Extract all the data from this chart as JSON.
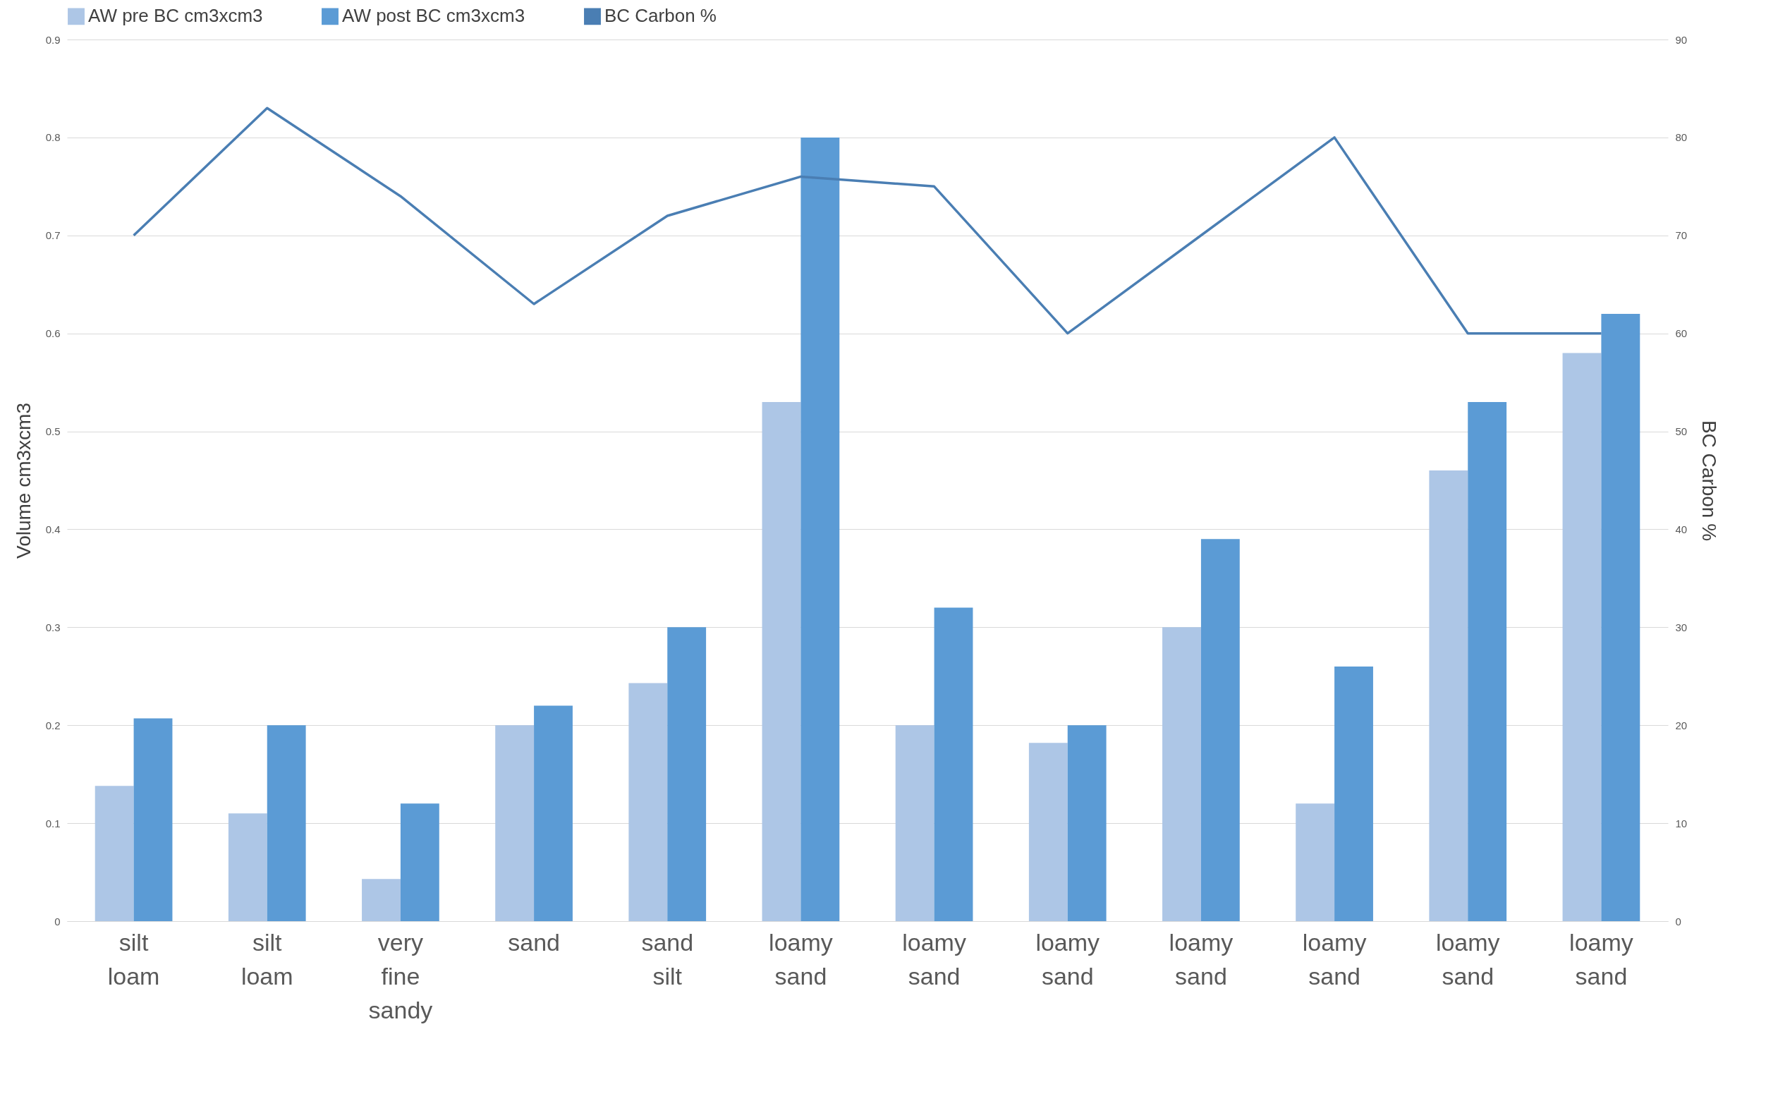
{
  "chart_data": {
    "type": "bar",
    "ylabel": "Volume cm3xcm3",
    "y2label": "BC Carbon %",
    "categories": [
      "silt loam",
      "silt loam",
      "very fine sandy",
      "sand",
      "sand silt",
      "loamy sand",
      "loamy sand",
      "loamy sand",
      "loamy sand",
      "loamy sand",
      "loamy sand",
      "loamy sand"
    ],
    "series": [
      {
        "name": "AW pre BC cm3xcm3",
        "color": "#adc6e6",
        "values": [
          0.138,
          0.11,
          0.043,
          0.2,
          0.243,
          0.53,
          0.2,
          0.182,
          0.3,
          0.12,
          0.46,
          0.58
        ]
      },
      {
        "name": "AW post BC cm3xcm3",
        "color": "#5b9bd5",
        "values": [
          0.207,
          0.2,
          0.12,
          0.22,
          0.3,
          0.8,
          0.32,
          0.2,
          0.39,
          0.26,
          0.53,
          0.62
        ]
      },
      {
        "name": "BC Carbon %",
        "type": "line",
        "axis": "y2",
        "color": "#4a7eb3",
        "values": [
          70,
          83,
          74,
          63,
          72,
          76,
          75,
          60,
          70,
          80,
          60,
          60
        ]
      }
    ],
    "ylim": [
      0,
      0.9
    ],
    "yticks": [
      0,
      0.1,
      0.2,
      0.3,
      0.4,
      0.5,
      0.6,
      0.7,
      0.8,
      0.9
    ],
    "y2lim": [
      0,
      90
    ],
    "y2ticks": [
      0,
      10,
      20,
      30,
      40,
      50,
      60,
      70,
      80,
      90
    ],
    "grid": "y",
    "legend": "top"
  }
}
